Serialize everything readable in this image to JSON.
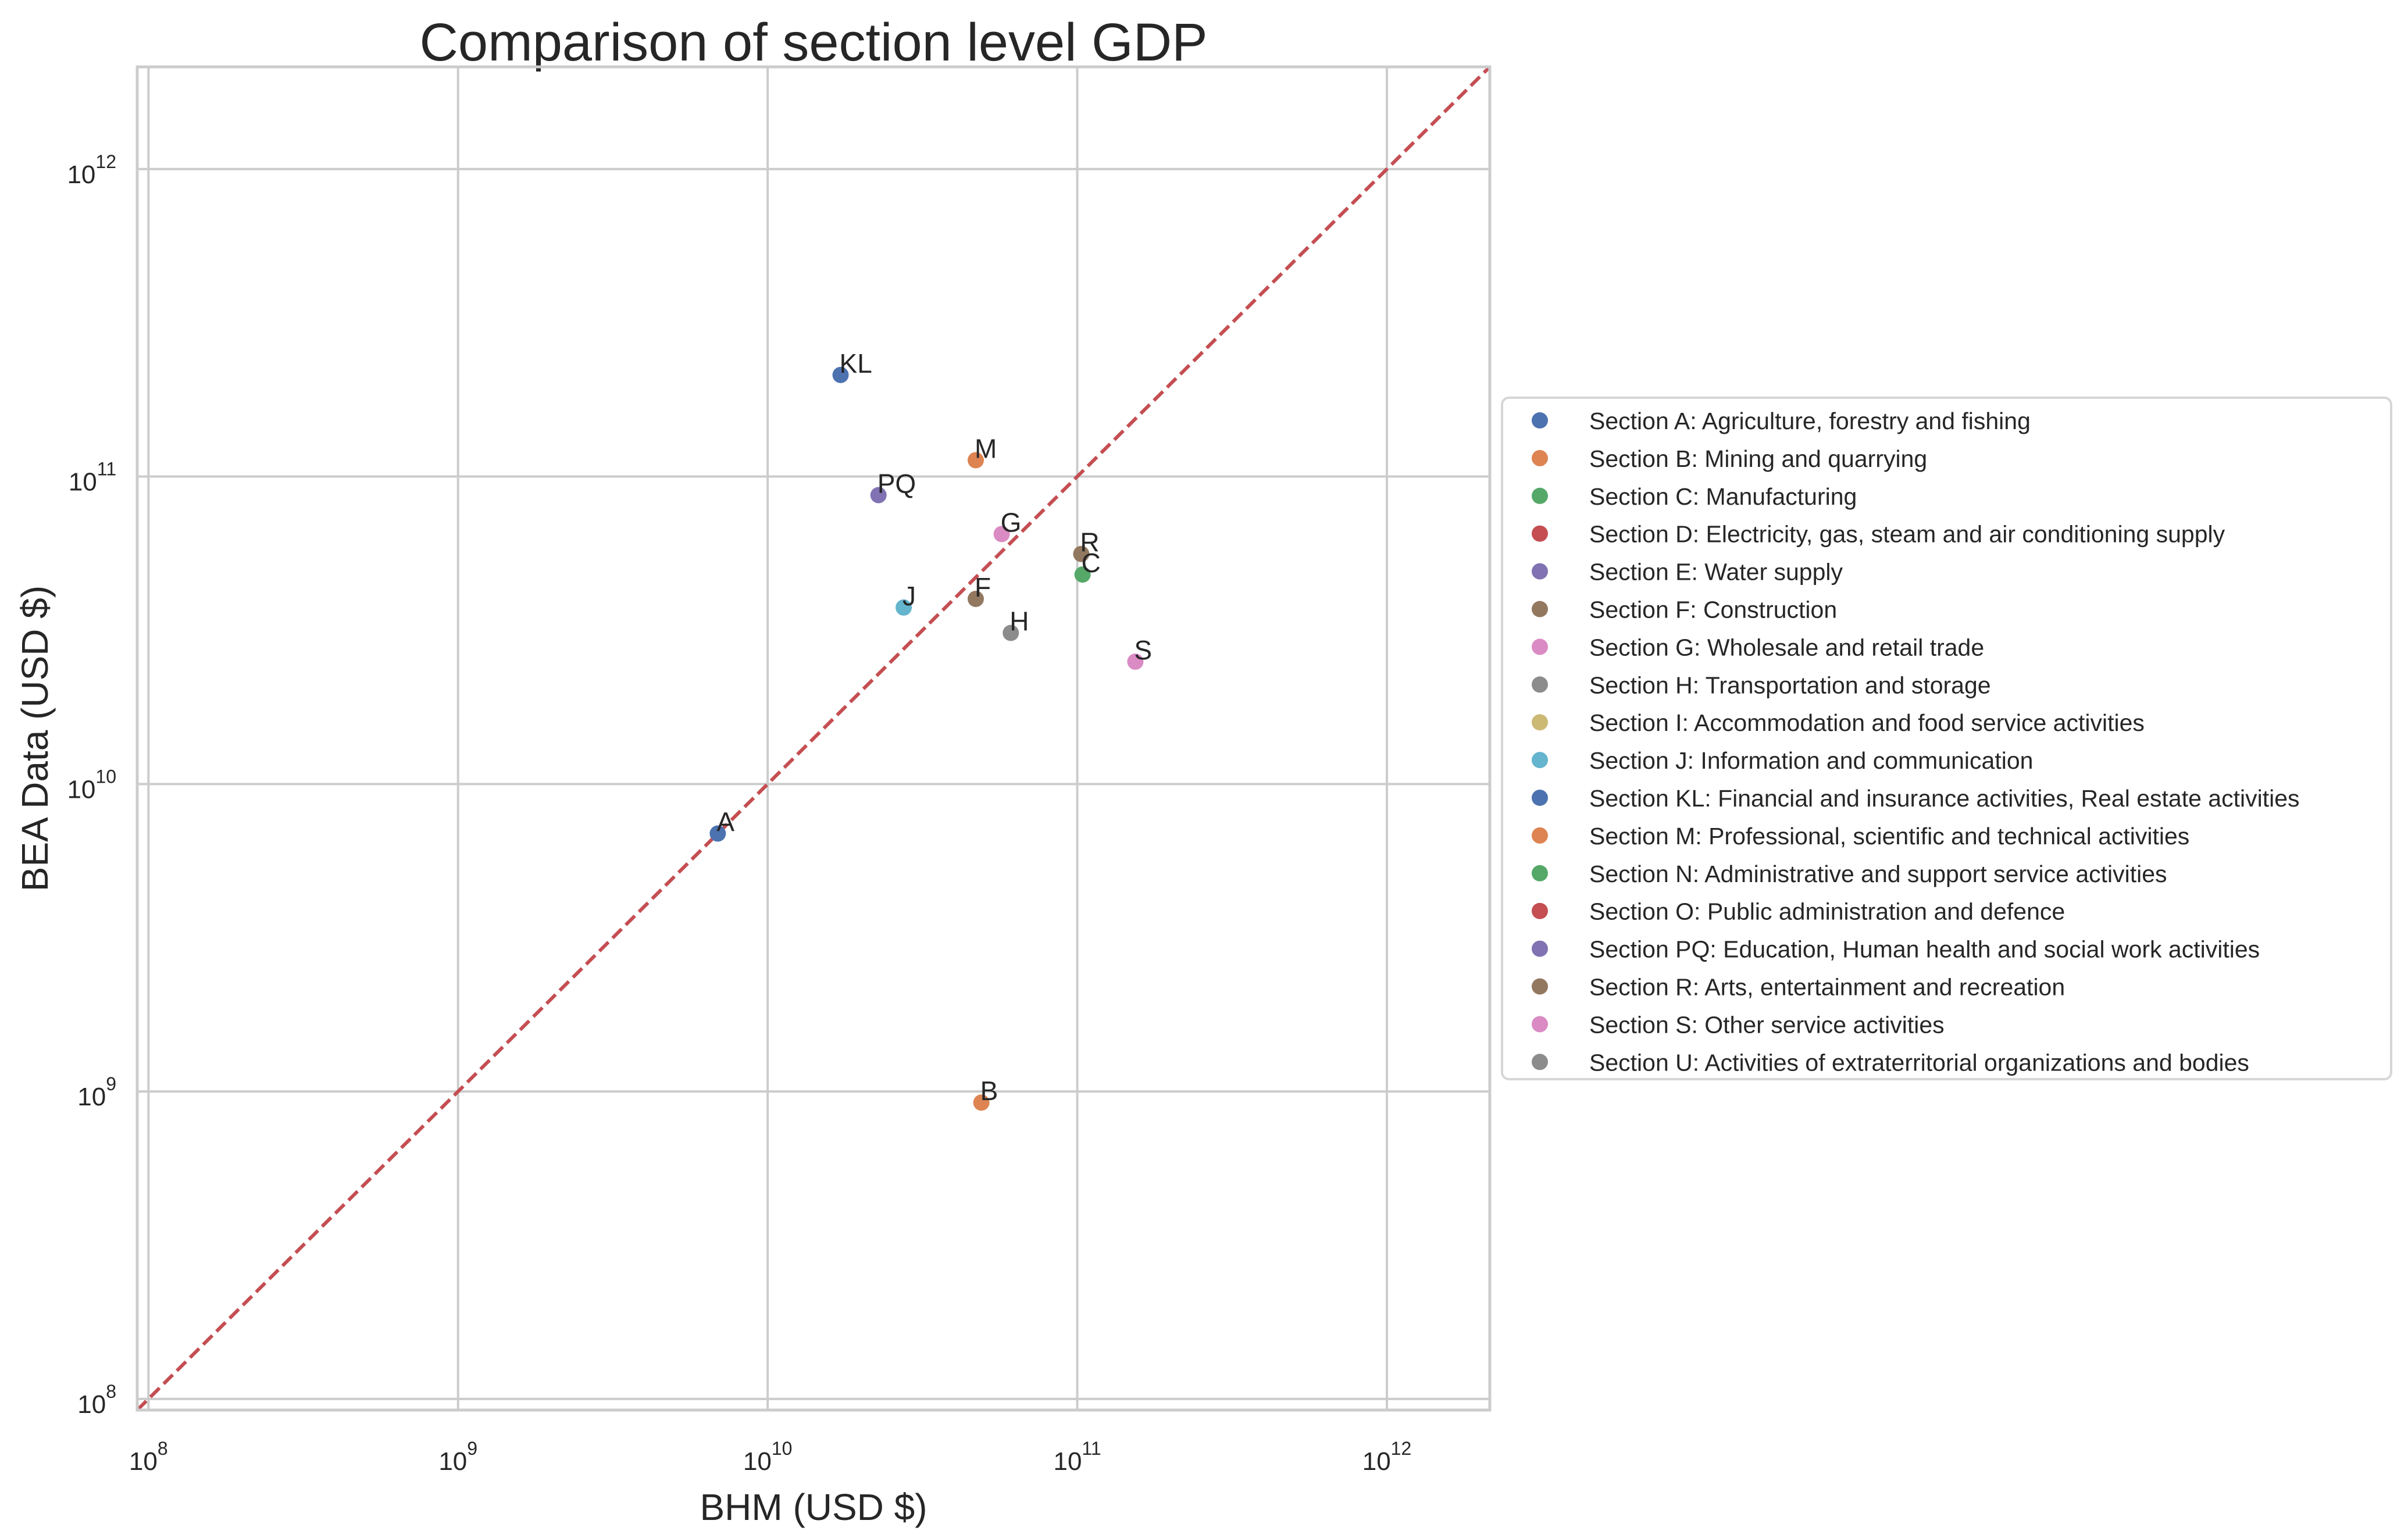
{
  "chart_data": {
    "type": "scatter",
    "title": "Comparison of section level GDP",
    "xlabel": "BHM (USD $)",
    "ylabel": "BEA Data (USD $)",
    "xscale": "log",
    "yscale": "log",
    "xlim": [
      92000000.0,
      2150000000000.0
    ],
    "ylim": [
      92000000.0,
      2150000000000.0
    ],
    "grid": true,
    "xticks": [
      {
        "base": "10",
        "exp": "8",
        "value": 100000000.0
      },
      {
        "base": "10",
        "exp": "9",
        "value": 1000000000.0
      },
      {
        "base": "10",
        "exp": "10",
        "value": 10000000000.0
      },
      {
        "base": "10",
        "exp": "11",
        "value": 100000000000.0
      },
      {
        "base": "10",
        "exp": "12",
        "value": 1000000000000.0
      }
    ],
    "yticks": [
      {
        "base": "10",
        "exp": "8",
        "value": 100000000.0
      },
      {
        "base": "10",
        "exp": "9",
        "value": 1000000000.0
      },
      {
        "base": "10",
        "exp": "10",
        "value": 10000000000.0
      },
      {
        "base": "10",
        "exp": "11",
        "value": 100000000000.0
      },
      {
        "base": "10",
        "exp": "12",
        "value": 1000000000000.0
      }
    ],
    "reference_line": {
      "label": "y = x",
      "style": "dashed",
      "color": "#C44E52"
    },
    "legend_position": "center-right (outside axes)",
    "series": [
      {
        "code": "A",
        "name": "Section A: Agriculture, forestry and fishing",
        "color": "#4C72B0",
        "x": 6900000000.0,
        "y": 6900000000.0,
        "plotted": true
      },
      {
        "code": "B",
        "name": "Section B: Mining and quarrying",
        "color": "#DD8452",
        "x": 49000000000.0,
        "y": 920000000.0,
        "plotted": true
      },
      {
        "code": "C",
        "name": "Section C: Manufacturing",
        "color": "#55A868",
        "x": 104000000000.0,
        "y": 48000000000.0,
        "plotted": true
      },
      {
        "code": "D",
        "name": "Section D: Electricity, gas, steam and air conditioning supply",
        "color": "#C44E52",
        "x": null,
        "y": null,
        "plotted": false
      },
      {
        "code": "E",
        "name": "Section E: Water supply",
        "color": "#8172B3",
        "x": null,
        "y": null,
        "plotted": false
      },
      {
        "code": "F",
        "name": "Section F: Construction",
        "color": "#937860",
        "x": 47000000000.0,
        "y": 40000000000.0,
        "plotted": true
      },
      {
        "code": "G",
        "name": "Section G: Wholesale and retail trade",
        "color": "#DA8BC3",
        "x": 57000000000.0,
        "y": 65000000000.0,
        "plotted": true
      },
      {
        "code": "H",
        "name": "Section H: Transportation and storage",
        "color": "#8C8C8C",
        "x": 61000000000.0,
        "y": 31000000000.0,
        "plotted": true
      },
      {
        "code": "I",
        "name": "Section I: Accommodation and food service activities",
        "color": "#CCB974",
        "x": null,
        "y": null,
        "plotted": false
      },
      {
        "code": "J",
        "name": "Section J: Information and communication",
        "color": "#64B5CD",
        "x": 27500000000.0,
        "y": 37500000000.0,
        "plotted": true
      },
      {
        "code": "KL",
        "name": "Section KL: Financial and insurance activities, Real estate activities",
        "color": "#4C72B0",
        "x": 17200000000.0,
        "y": 214000000000.0,
        "plotted": true
      },
      {
        "code": "M",
        "name": "Section M: Professional, scientific and technical activities",
        "color": "#DD8452",
        "x": 47000000000.0,
        "y": 113000000000.0,
        "plotted": true
      },
      {
        "code": "N",
        "name": "Section N: Administrative and support service activities",
        "color": "#55A868",
        "x": null,
        "y": null,
        "plotted": false
      },
      {
        "code": "O",
        "name": "Section O: Public administration and defence",
        "color": "#C44E52",
        "x": null,
        "y": null,
        "plotted": false
      },
      {
        "code": "PQ",
        "name": "Section PQ: Education, Human health and social work activities",
        "color": "#8172B3",
        "x": 22800000000.0,
        "y": 87000000000.0,
        "plotted": true
      },
      {
        "code": "R",
        "name": "Section R: Arts, entertainment and recreation",
        "color": "#937860",
        "x": 103000000000.0,
        "y": 56000000000.0,
        "plotted": true
      },
      {
        "code": "S",
        "name": "Section S: Other service activities",
        "color": "#DA8BC3",
        "x": 154000000000.0,
        "y": 25000000000.0,
        "plotted": true
      },
      {
        "code": "U",
        "name": "Section U: Activities of extraterritorial organizations and bodies",
        "color": "#8C8C8C",
        "x": null,
        "y": null,
        "plotted": false
      }
    ]
  }
}
